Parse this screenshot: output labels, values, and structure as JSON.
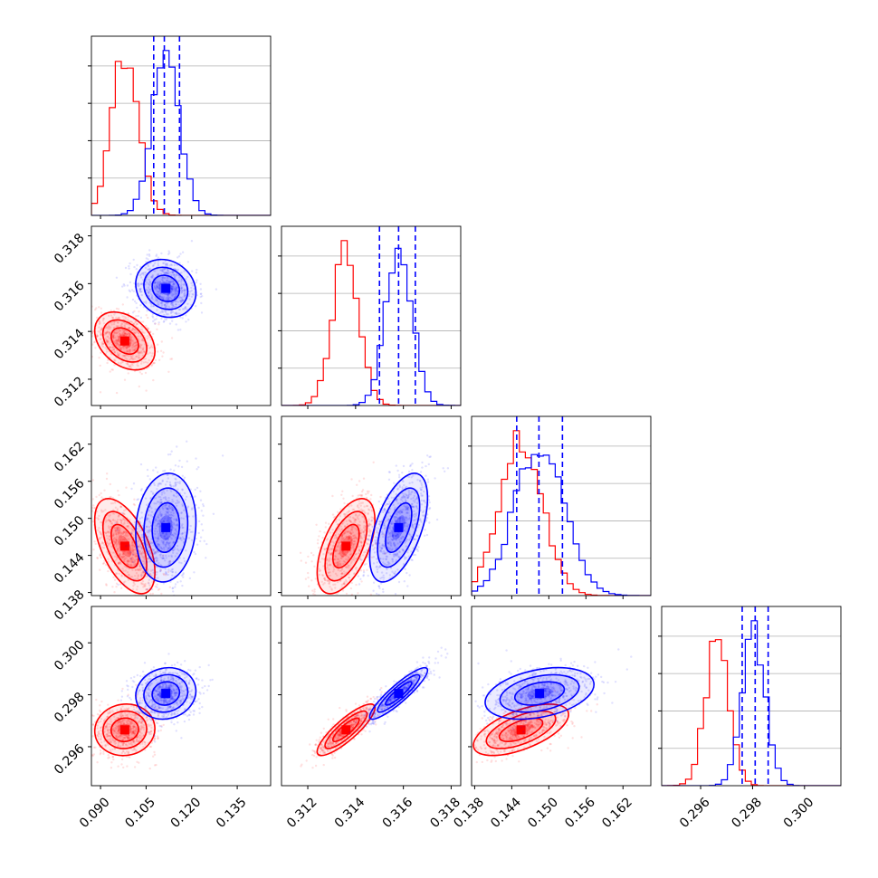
{
  "chart_data": {
    "type": "corner",
    "title": "",
    "parameters": [
      {
        "range": [
          0.087,
          0.146
        ],
        "ticks": [
          0.09,
          0.105,
          0.12,
          0.135
        ],
        "tick_labels": [
          "0.090",
          "0.105",
          "0.120",
          "0.135"
        ]
      },
      {
        "range": [
          0.3109,
          0.3184
        ],
        "ticks": [
          0.312,
          0.314,
          0.316,
          0.318
        ],
        "tick_labels": [
          "0.312",
          "0.314",
          "0.316",
          "0.318"
        ]
      },
      {
        "range": [
          0.1375,
          0.1665
        ],
        "ticks": [
          0.138,
          0.144,
          0.15,
          0.156,
          0.162
        ],
        "tick_labels": [
          "0.138",
          "0.144",
          "0.150",
          "0.156",
          "0.162"
        ]
      },
      {
        "range": [
          0.2945,
          0.3014
        ],
        "ticks": [
          0.296,
          0.298,
          0.3
        ],
        "tick_labels": [
          "0.296",
          "0.298",
          "0.300"
        ]
      }
    ],
    "series": [
      {
        "color": "#ff0000",
        "mean": [
          0.098,
          0.3136,
          0.1455,
          0.29665
        ],
        "sd": [
          0.0045,
          0.00055,
          0.0035,
          0.00045
        ]
      },
      {
        "color": "#0000ff",
        "mean": [
          0.1115,
          0.3158,
          0.1485,
          0.29805
        ],
        "sd": [
          0.0045,
          0.00055,
          0.004,
          0.00045
        ]
      }
    ],
    "correlations": {
      "red": [
        [
          1,
          -0.35,
          -0.55,
          0.05
        ],
        [
          -0.35,
          1,
          0.55,
          0.85
        ],
        [
          -0.55,
          0.55,
          1,
          0.6
        ],
        [
          0.05,
          0.85,
          0.6,
          1
        ]
      ],
      "blue": [
        [
          1,
          -0.15,
          0.1,
          0.1
        ],
        [
          -0.15,
          1,
          0.55,
          0.9
        ],
        [
          0.1,
          0.55,
          1,
          0.35
        ],
        [
          0.1,
          0.9,
          0.35,
          1
        ]
      ]
    },
    "quantile_lines": {
      "color": "#0000ff",
      "values": [
        [
          0.1075,
          0.111,
          0.116
        ],
        [
          0.315,
          0.3158,
          0.3165
        ],
        [
          0.1448,
          0.1484,
          0.1522
        ],
        [
          0.2976,
          0.2981,
          0.2986
        ]
      ]
    },
    "grid": true,
    "legend": "none"
  }
}
